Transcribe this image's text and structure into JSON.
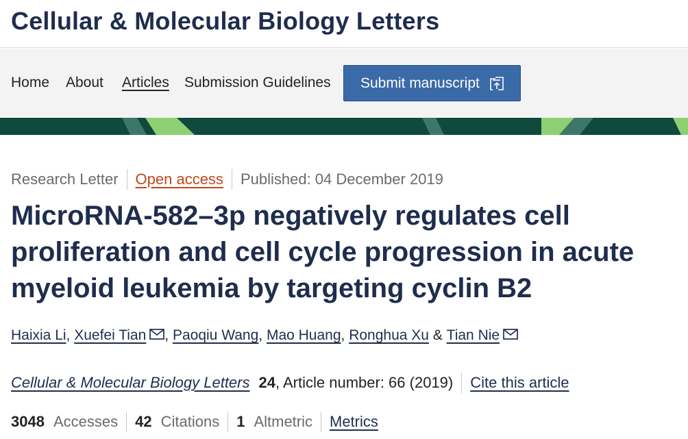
{
  "header": {
    "journal_title": "Cellular & Molecular Biology Letters"
  },
  "nav": {
    "items": [
      "Home",
      "About",
      "Articles",
      "Submission Guidelines"
    ],
    "active": "Articles",
    "submit_label": "Submit manuscript",
    "submit_icon": "submit-upload-icon"
  },
  "banner": {
    "colors": [
      "#0f4a3d",
      "#8fcf73",
      "#3d7767"
    ]
  },
  "article": {
    "type": "Research Letter",
    "access": "Open access",
    "published": "Published: 04 December 2019",
    "title": "MicroRNA-582–3p negatively regulates cell proliferation and cell cycle progression in acute myeloid leukemia by targeting cyclin B2",
    "authors": [
      {
        "name": "Haixia Li",
        "sep": ", ",
        "email": false
      },
      {
        "name": "Xuefei Tian",
        "sep": ", ",
        "email": true
      },
      {
        "name": "Paoqiu Wang",
        "sep": ", ",
        "email": false
      },
      {
        "name": "Mao Huang",
        "sep": ", ",
        "email": false
      },
      {
        "name": "Ronghua Xu",
        "sep": " & ",
        "email": false
      },
      {
        "name": "Tian Nie",
        "sep": "",
        "email": true
      }
    ],
    "citation": {
      "journal": "Cellular & Molecular Biology Letters",
      "volume": "24",
      "details": ", Article number: 66 (2019)",
      "cite_label": "Cite this article"
    },
    "metrics": {
      "accesses_count": "3048",
      "accesses_label": "Accesses",
      "citations_count": "42",
      "citations_label": "Citations",
      "altmetric_count": "1",
      "altmetric_label": "Altmetric",
      "metrics_label": "Metrics"
    }
  },
  "colors": {
    "navy": "#1f2d4d",
    "button_blue": "#3a6aa8",
    "open_access": "#c0471a"
  }
}
